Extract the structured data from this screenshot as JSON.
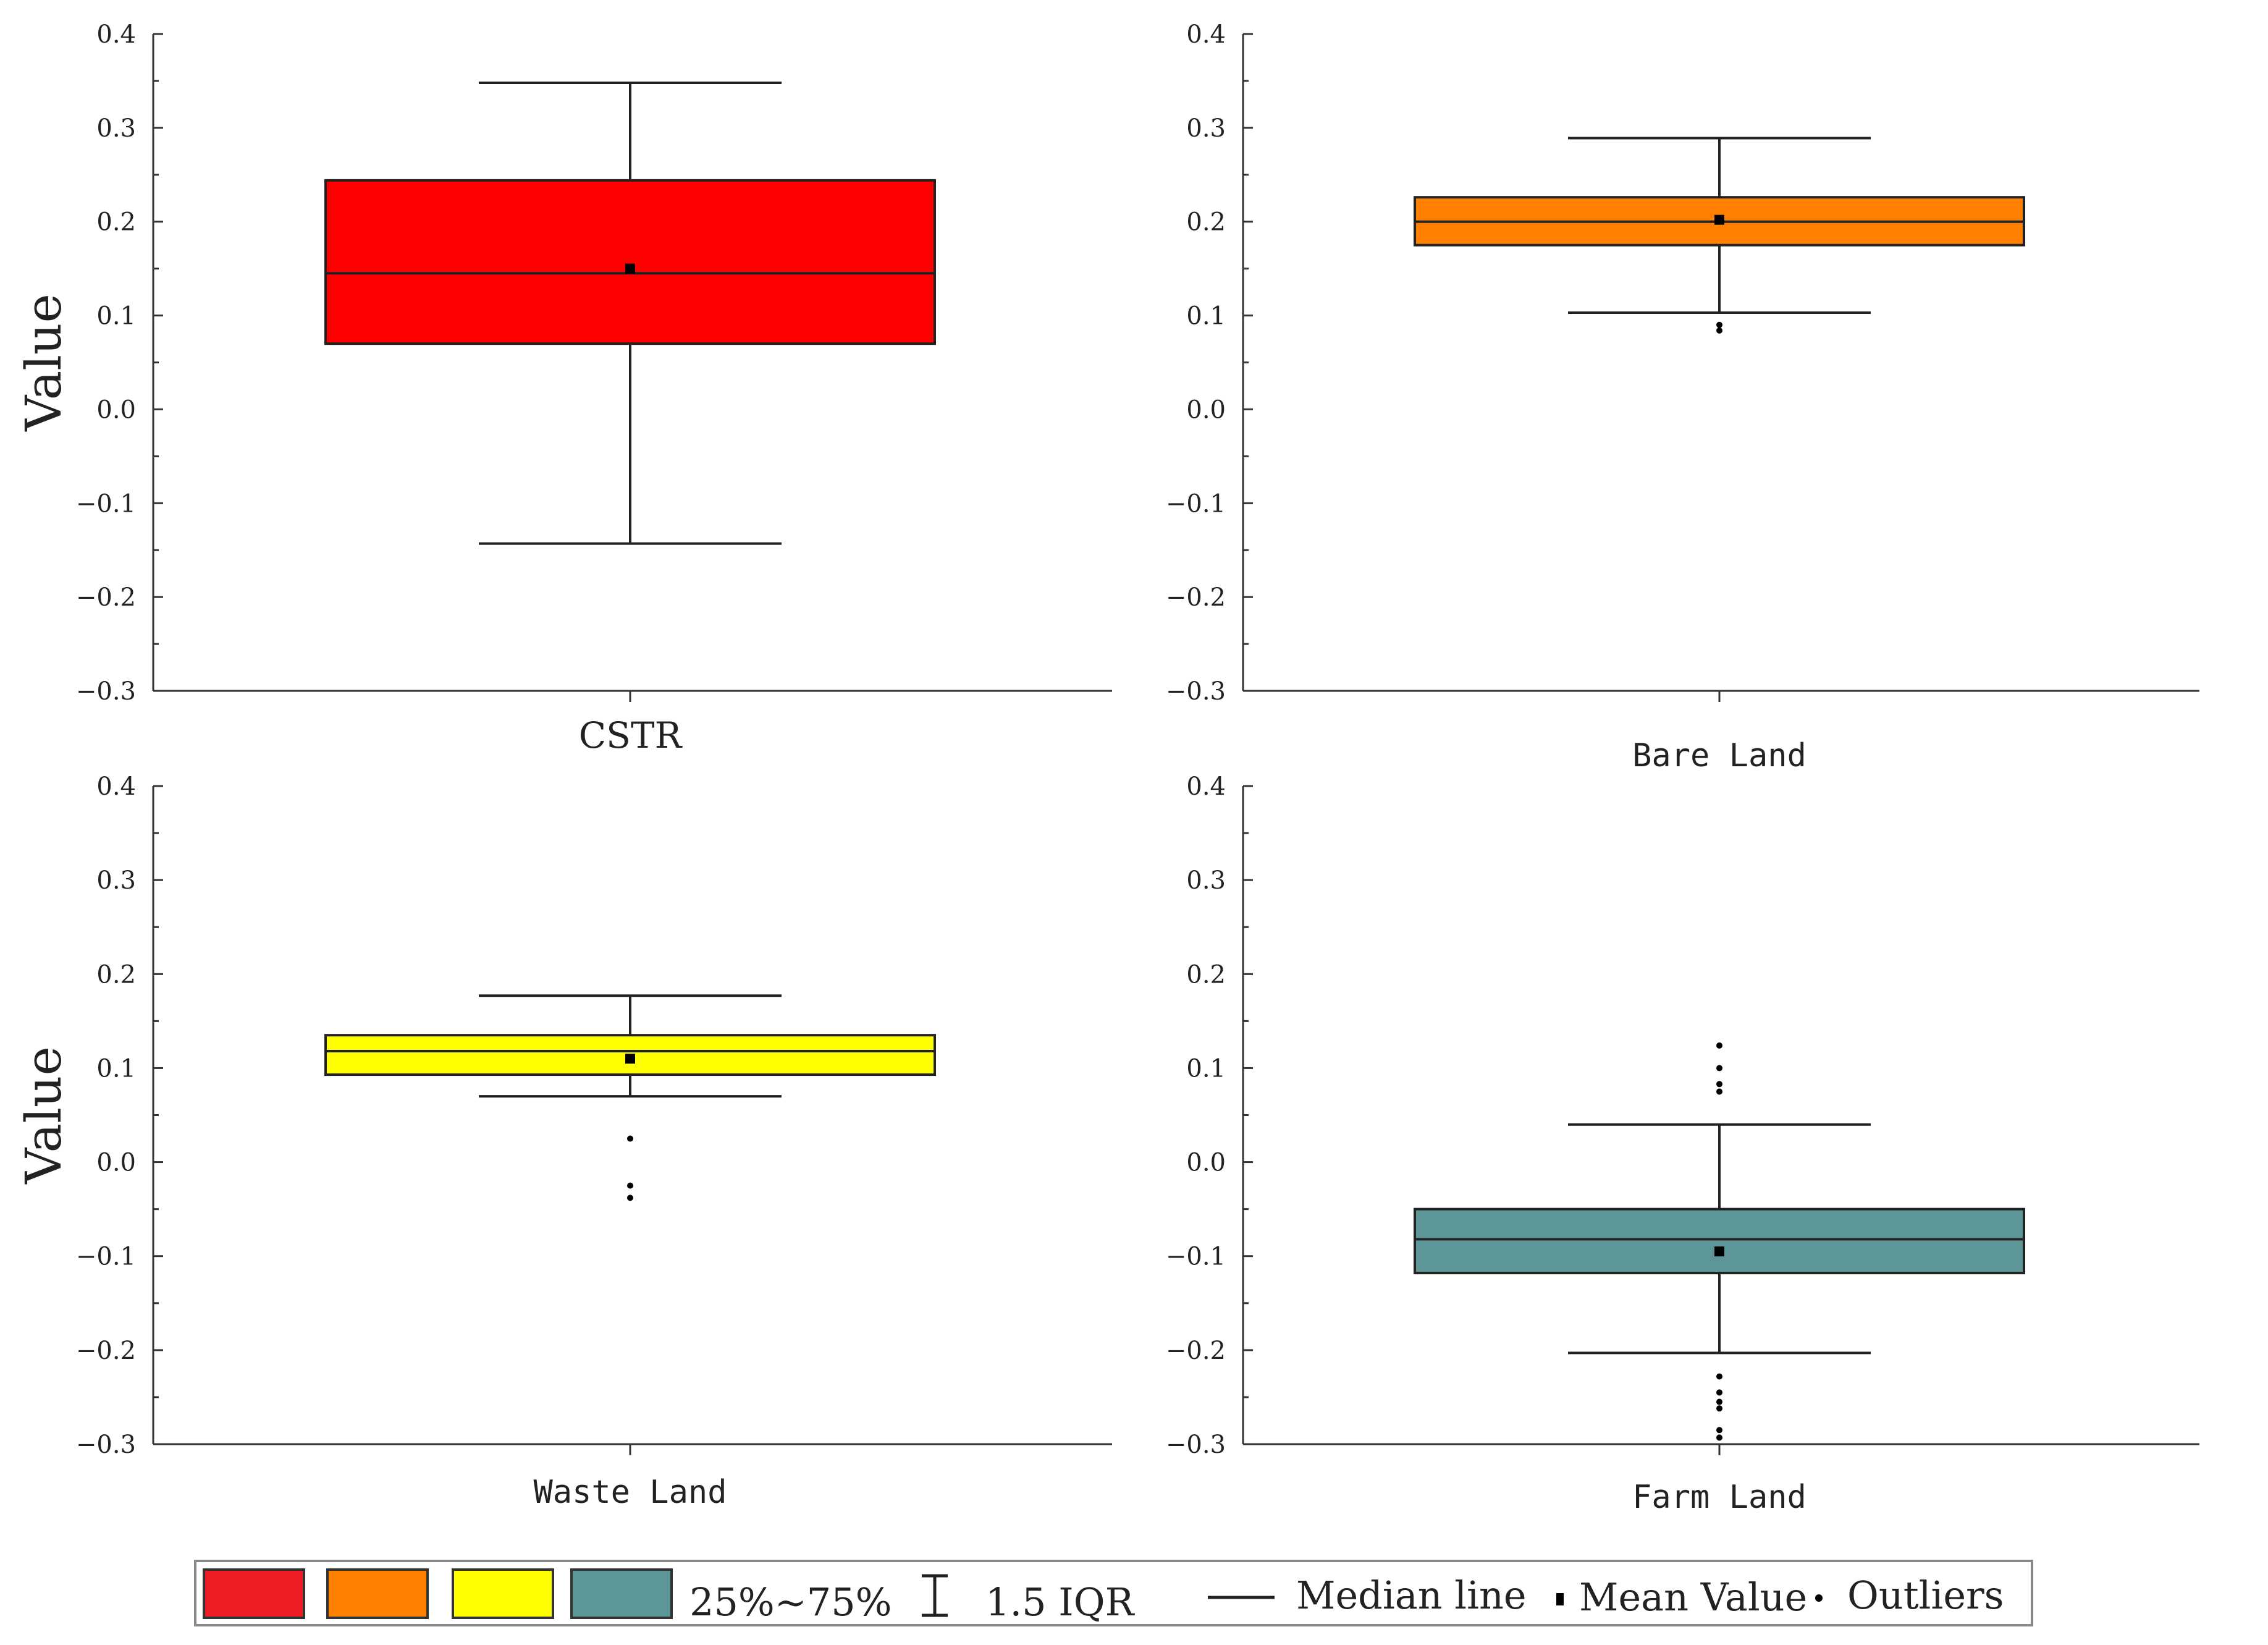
{
  "chart_data": [
    {
      "type": "box",
      "category": "CSTR",
      "ylabel": "Value",
      "ylim": [
        -0.3,
        0.4
      ],
      "yticks": [
        "0.4",
        "0.3",
        "0.2",
        "0.1",
        "0.0",
        "−0.1",
        "−0.2",
        "−0.3"
      ],
      "ytick_values": [
        0.4,
        0.3,
        0.2,
        0.1,
        0.0,
        -0.1,
        -0.2,
        -0.3
      ],
      "whisker_low": -0.143,
      "q1": 0.07,
      "median": 0.145,
      "q3": 0.244,
      "whisker_high": 0.348,
      "mean": 0.15,
      "outliers": [],
      "color": "#FF0000"
    },
    {
      "type": "box",
      "category": "Bare Land",
      "ylabel": "",
      "ylim": [
        -0.3,
        0.4
      ],
      "yticks": [
        "0.4",
        "0.3",
        "0.2",
        "0.1",
        "0.0",
        "−0.1",
        "−0.2",
        "−0.3"
      ],
      "ytick_values": [
        0.4,
        0.3,
        0.2,
        0.1,
        0.0,
        -0.1,
        -0.2,
        -0.3
      ],
      "whisker_low": 0.103,
      "q1": 0.175,
      "median": 0.2,
      "q3": 0.226,
      "whisker_high": 0.289,
      "mean": 0.202,
      "outliers": [
        0.09,
        0.084
      ],
      "color": "#FF8000"
    },
    {
      "type": "box",
      "category": "Waste Land",
      "ylabel": "Value",
      "ylim": [
        -0.3,
        0.4
      ],
      "yticks": [
        "0.4",
        "0.3",
        "0.2",
        "0.1",
        "0.0",
        "−0.1",
        "−0.2",
        "−0.3"
      ],
      "ytick_values": [
        0.4,
        0.3,
        0.2,
        0.1,
        0.0,
        -0.1,
        -0.2,
        -0.3
      ],
      "whisker_low": 0.07,
      "q1": 0.093,
      "median": 0.118,
      "q3": 0.135,
      "whisker_high": 0.177,
      "mean": 0.11,
      "outliers": [
        0.025,
        -0.025,
        -0.038
      ],
      "color": "#FFFF00"
    },
    {
      "type": "box",
      "category": "Farm Land",
      "ylabel": "",
      "ylim": [
        -0.3,
        0.4
      ],
      "yticks": [
        "0.4",
        "0.3",
        "0.2",
        "0.1",
        "0.0",
        "−0.1",
        "−0.2",
        "−0.3"
      ],
      "ytick_values": [
        0.4,
        0.3,
        0.2,
        0.1,
        0.0,
        -0.1,
        -0.2,
        -0.3
      ],
      "whisker_low": -0.203,
      "q1": -0.118,
      "median": -0.082,
      "q3": -0.05,
      "whisker_high": 0.04,
      "mean": -0.095,
      "outliers": [
        0.124,
        0.1,
        0.083,
        0.075,
        -0.228,
        -0.245,
        -0.255,
        -0.262,
        -0.285,
        -0.293
      ],
      "color": "#5C9696"
    }
  ],
  "legend": {
    "swatches": [
      "#EE1C25",
      "#FF8000",
      "#FFFF00",
      "#5C9696"
    ],
    "range_label": "25%~75%",
    "iqr_label": "1.5 IQR",
    "median_label": "Median line",
    "mean_label": "Mean Value",
    "outliers_label": "Outliers"
  }
}
